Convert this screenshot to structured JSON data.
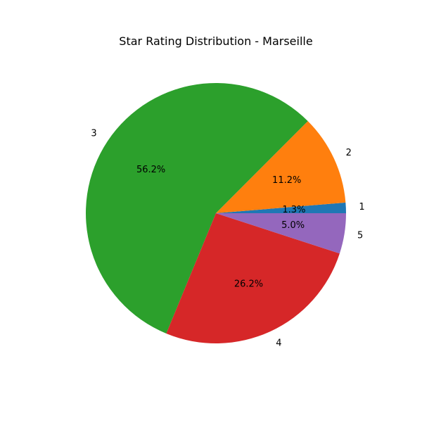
{
  "chart_data": {
    "type": "pie",
    "title": "Star Rating Distribution - Marseille",
    "categories": [
      "1",
      "2",
      "3",
      "4",
      "5"
    ],
    "values": [
      1.3,
      11.2,
      56.2,
      26.2,
      5.0
    ],
    "percent_labels": [
      "1.3%",
      "11.2%",
      "56.2%",
      "26.2%",
      "5.0%"
    ],
    "colors": [
      "#1f77b4",
      "#ff7f0e",
      "#2ca02c",
      "#d62728",
      "#9467bd"
    ],
    "start_angle_deg": 0,
    "direction": "counterclockwise",
    "legend": "none"
  }
}
